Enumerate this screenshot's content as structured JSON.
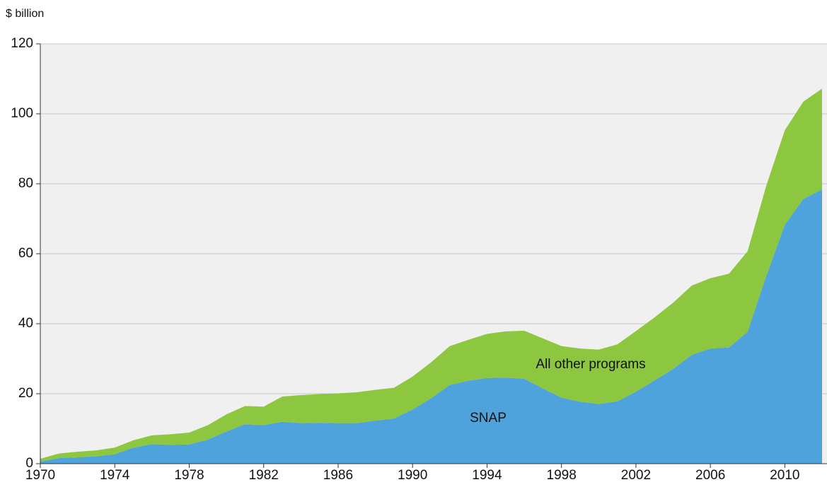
{
  "chart_data": {
    "type": "stacked_area",
    "y_label": "$ billion",
    "x": [
      1970,
      1971,
      1972,
      1973,
      1974,
      1975,
      1976,
      1977,
      1978,
      1979,
      1980,
      1981,
      1982,
      1983,
      1984,
      1985,
      1986,
      1987,
      1988,
      1989,
      1990,
      1991,
      1992,
      1993,
      1994,
      1995,
      1996,
      1997,
      1998,
      1999,
      2000,
      2001,
      2002,
      2003,
      2004,
      2005,
      2006,
      2007,
      2008,
      2009,
      2010,
      2011,
      2012
    ],
    "series": [
      {
        "name": "SNAP",
        "color": "#4fa3dc",
        "values": [
          0.6,
          1.6,
          1.8,
          2.1,
          2.7,
          4.6,
          5.6,
          5.4,
          5.5,
          6.9,
          9.2,
          11.3,
          11.0,
          12.0,
          11.6,
          11.7,
          11.6,
          11.6,
          12.3,
          12.9,
          15.5,
          18.7,
          22.5,
          23.7,
          24.5,
          24.6,
          24.3,
          21.5,
          18.9,
          17.7,
          17.1,
          17.8,
          20.6,
          23.8,
          27.1,
          31.1,
          32.9,
          33.2,
          37.7,
          53.6,
          68.3,
          75.7,
          78.4
        ]
      },
      {
        "name": "All other programs",
        "color": "#8dc63f",
        "values": [
          0.8,
          1.3,
          1.6,
          1.7,
          1.9,
          2.1,
          2.5,
          3.0,
          3.4,
          4.1,
          4.9,
          5.2,
          5.3,
          7.2,
          8.0,
          8.2,
          8.5,
          8.8,
          8.8,
          8.8,
          9.4,
          10.3,
          11.1,
          11.7,
          12.6,
          13.2,
          13.7,
          14.3,
          14.7,
          15.2,
          15.5,
          16.3,
          17.3,
          18.0,
          18.9,
          19.8,
          20.1,
          21.1,
          23.0,
          25.8,
          27.0,
          27.8,
          28.8
        ]
      }
    ],
    "xlim": [
      1970,
      2012
    ],
    "xticks": [
      1970,
      1974,
      1978,
      1982,
      1986,
      1990,
      1994,
      1998,
      2002,
      2006,
      2010
    ],
    "ylim": [
      0,
      120
    ],
    "yticks": [
      0,
      20,
      40,
      60,
      80,
      100,
      120
    ],
    "grid": true
  }
}
